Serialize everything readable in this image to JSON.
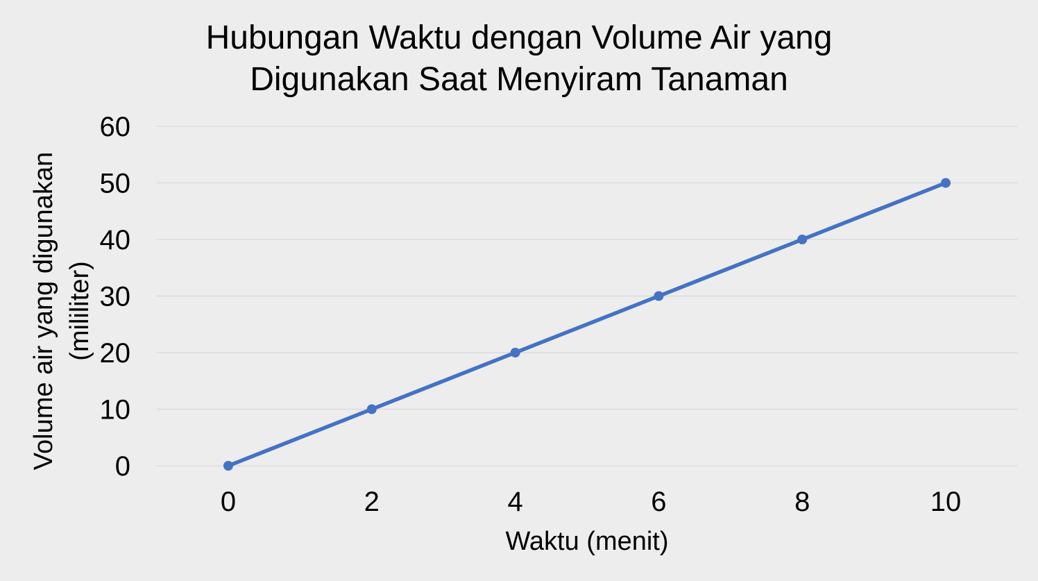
{
  "chart_data": {
    "type": "line",
    "title": [
      "Hubungan Waktu dengan Volume Air yang",
      "Digunakan Saat Menyiram Tanaman"
    ],
    "xlabel": "Waktu (menit)",
    "ylabel": [
      "Volume air yang digunakan",
      "(mililiter)"
    ],
    "x": [
      0,
      2,
      4,
      6,
      8,
      10
    ],
    "series": [
      {
        "values": [
          0,
          10,
          20,
          30,
          40,
          50
        ],
        "color": "#4472c4"
      }
    ],
    "xticks": [
      "0",
      "2",
      "4",
      "6",
      "8",
      "10"
    ],
    "yticks": [
      "0",
      "10",
      "20",
      "30",
      "40",
      "50",
      "60"
    ],
    "ylim": [
      0,
      60
    ],
    "grid": true,
    "legend": "none",
    "gridline_color": "#d9d9d9",
    "background_color": "#ededed"
  }
}
